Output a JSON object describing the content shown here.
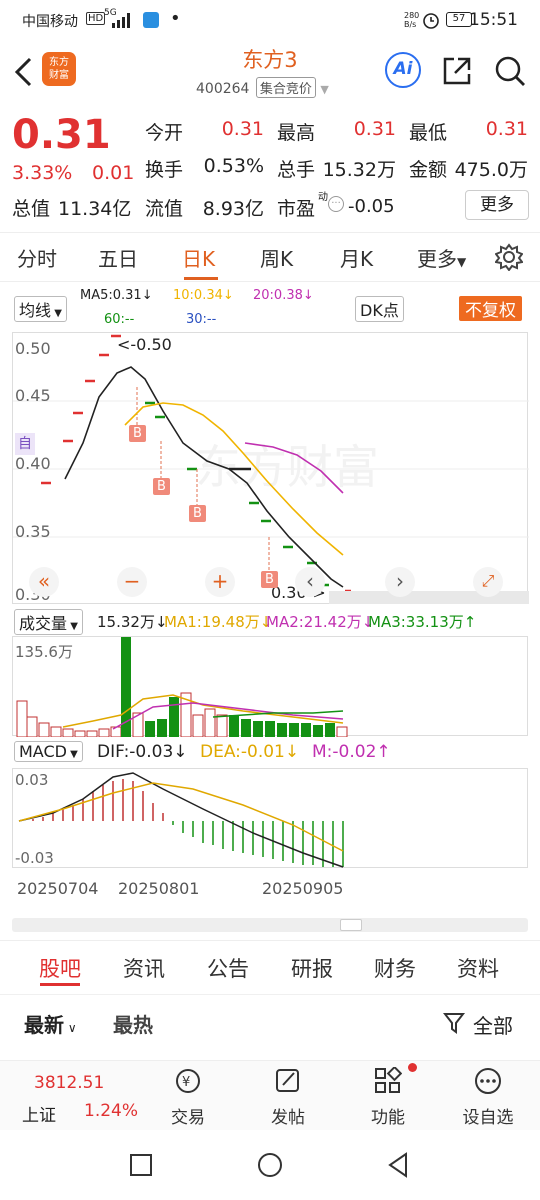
{
  "status_bar": {
    "carrier": "中国移动",
    "network_badges": [
      "HD",
      "5G"
    ],
    "speed": "280\nB/s",
    "battery": "57",
    "time": "15:51"
  },
  "header": {
    "back_icon": "chevron-left-icon",
    "logo_text": "东方\n财富",
    "title": "东方3",
    "code": "400264",
    "market_mode": "集合竞价",
    "ai_label": "Ai",
    "share_icon": "share-icon",
    "search_icon": "search-icon"
  },
  "quote": {
    "price": "0.31",
    "change_pct": "3.33%",
    "change_amt": "0.01",
    "open_label": "今开",
    "open": "0.31",
    "high_label": "最高",
    "high": "0.31",
    "low_label": "最低",
    "low": "0.31",
    "turnover_label": "换手",
    "turnover": "0.53%",
    "volume_label": "总手",
    "volume": "15.32万",
    "amount_label": "金额",
    "amount": "475.0万",
    "mktcap_label": "总值",
    "mktcap": "11.34亿",
    "float_label": "流值",
    "float_cap": "8.93亿",
    "pe_label": "市盈",
    "pe_sup": "动",
    "pe": "-0.05",
    "more_label": "更多"
  },
  "period_tabs": {
    "items": [
      "分时",
      "五日",
      "日K",
      "周K",
      "月K",
      "更多"
    ],
    "active": "日K"
  },
  "kline": {
    "indicator_select": "均线",
    "ma5": "MA5:0.31↓",
    "ma10": "10:0.34↓",
    "ma20": "20:0.38↓",
    "ma60": "60:--",
    "ma30": "30:--",
    "dk_label": "DK点",
    "adjust_label": "不复权",
    "y_ticks": [
      "0.50",
      "0.45",
      "0.40",
      "0.35",
      "0.30"
    ],
    "high_annot": "<-0.50",
    "low_annot": "0.30->",
    "side_label": "自",
    "b_marker": "B",
    "watermark": "东方财富",
    "colors": {
      "up": "#e03131",
      "down": "#139113",
      "ma5": "#222222",
      "ma10": "#f0b400",
      "ma20": "#c030b0"
    }
  },
  "volume": {
    "indicator_select": "成交量",
    "current": "15.32万↓",
    "ma1": "MA1:19.48万↓",
    "ma2": "MA2:21.42万↓",
    "ma3": "MA3:33.13万↑",
    "y_max": "135.6万"
  },
  "macd": {
    "indicator_select": "MACD",
    "dif": "DIF:-0.03↓",
    "dea": "DEA:-0.01↓",
    "m": "M:-0.02↑",
    "y_top": "0.03",
    "y_bottom": "-0.03"
  },
  "dates": [
    "20250704",
    "20250801",
    "20250905"
  ],
  "community_tabs": {
    "items": [
      "股吧",
      "资讯",
      "公告",
      "研报",
      "财务",
      "资料"
    ],
    "active": "股吧"
  },
  "sort_row": {
    "latest": "最新",
    "hottest": "最热",
    "filter": "全部"
  },
  "dock": {
    "index_value": "3812.51",
    "index_name": "上证",
    "index_change": "1.24%",
    "items": [
      {
        "label": "交易",
        "icon": "trade-icon"
      },
      {
        "label": "发帖",
        "icon": "edit-icon"
      },
      {
        "label": "功能",
        "icon": "grid-icon"
      },
      {
        "label": "设自选",
        "icon": "more-dots-icon"
      }
    ]
  },
  "nav_bar": {
    "icons": [
      "square-icon",
      "circle-icon",
      "triangle-back-icon"
    ]
  }
}
